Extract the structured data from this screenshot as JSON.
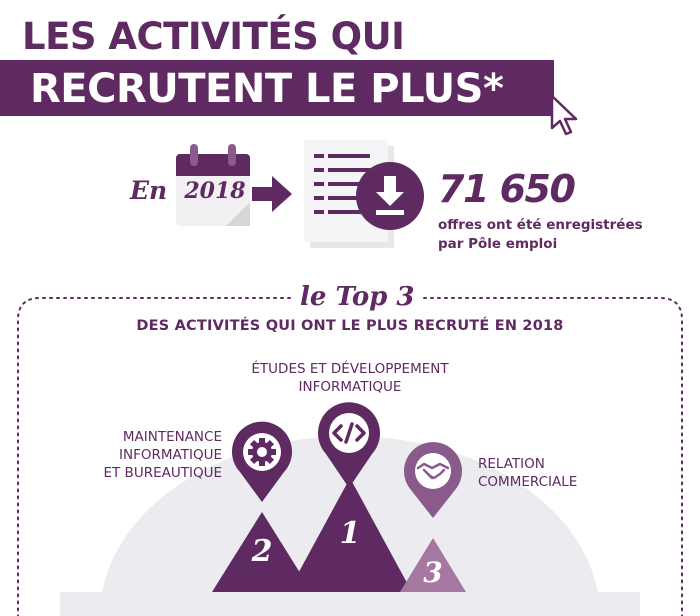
{
  "header": {
    "line1": "LES ACTIVITÉS QUI",
    "line2": "RECRUTENT LE PLUS*"
  },
  "stat": {
    "en_label": "En",
    "year": "2018",
    "number": "71 650",
    "caption_line1": "offres ont été enregistrées",
    "caption_line2": "par Pôle emploi"
  },
  "top3": {
    "label": "le Top 3",
    "subtitle": "DES ACTIVITÉS QUI ONT LE PLUS RECRUTÉ EN 2018",
    "activities": [
      {
        "rank": "1",
        "line1": "ÉTUDES ET DÉVELOPPEMENT",
        "line2": "INFORMATIQUE",
        "icon": "code-icon"
      },
      {
        "rank": "2",
        "line1": "MAINTENANCE",
        "line2": "INFORMATIQUE",
        "line3": "ET BUREAUTIQUE",
        "icon": "gear-wrench-icon"
      },
      {
        "rank": "3",
        "line1": "RELATION",
        "line2": "COMMERCIALE",
        "icon": "handshake-icon"
      }
    ]
  },
  "colors": {
    "primary": "#5f2a62",
    "light": "#8b5a8c",
    "lighter": "#a6789f",
    "grey_arc": "#ecebef"
  }
}
